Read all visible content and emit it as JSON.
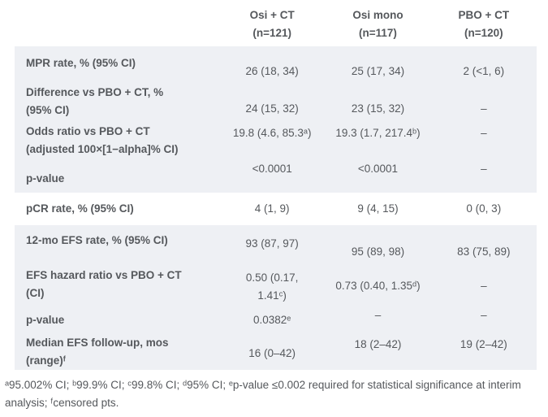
{
  "table": {
    "header": {
      "columns": [
        {
          "name": "Osi + CT",
          "n": "(n=121)"
        },
        {
          "name": "Osi mono",
          "n": "(n=117)"
        },
        {
          "name": "PBO + CT",
          "n": "(n=120)"
        }
      ]
    },
    "sections": [
      {
        "rows": [
          {
            "label_lines": [
              "MPR rate, % (95% CI)"
            ],
            "values": [
              "26 (18, 34)",
              "25 (17, 34)",
              "2 (<1, 6)"
            ]
          },
          {
            "label_lines": [
              "Difference vs PBO + CT, %",
              "(95% CI)"
            ],
            "values": [
              "24 (15, 32)",
              "23 (15, 32)",
              "–"
            ]
          },
          {
            "label_lines": [
              "Odds ratio vs PBO + CT",
              "(adjusted 100×[1−alpha]% CI)"
            ],
            "values": [
              "19.8 (4.6, 85.3ᵃ)",
              "19.3 (1.7, 217.4ᵇ)",
              "–"
            ]
          },
          {
            "label_lines": [
              "p-value"
            ],
            "values": [
              "<0.0001",
              "<0.0001",
              "–"
            ]
          }
        ]
      },
      {
        "rows": [
          {
            "label_lines": [
              "pCR rate, % (95% CI)"
            ],
            "values": [
              "4 (1, 9)",
              "9 (4, 15)",
              "0 (0, 3)"
            ]
          }
        ]
      },
      {
        "rows": [
          {
            "label_lines": [
              "12-mo EFS rate, % (95% CI)"
            ],
            "values": [
              "93 (87, 97)",
              "95 (89, 98)",
              "83 (75, 89)"
            ]
          },
          {
            "label_lines": [
              "EFS hazard ratio vs PBO + CT",
              "(CI)"
            ],
            "values": [
              [
                "0.50 (0.17,",
                "1.41ᶜ)"
              ],
              "0.73 (0.40, 1.35ᵈ)",
              "–"
            ]
          },
          {
            "label_lines": [
              "p-value"
            ],
            "values": [
              "0.0382ᵉ",
              "–",
              "–"
            ]
          },
          {
            "label_lines": [
              "Median EFS follow-up, mos",
              "(range)ᶠ"
            ],
            "values": [
              "16 (0–42)",
              "18 (2–42)",
              "19 (2–42)"
            ]
          }
        ]
      }
    ],
    "footnote": "ᵃ95.002% CI; ᵇ99.9% CI; ᶜ99.8% CI; ᵈ95% CI; ᵉp-value ≤0.002 required for statistical significance at interim analysis; ᶠcensored pts."
  },
  "colors": {
    "section_bg": "#eef0f4",
    "text": "#55585c"
  }
}
